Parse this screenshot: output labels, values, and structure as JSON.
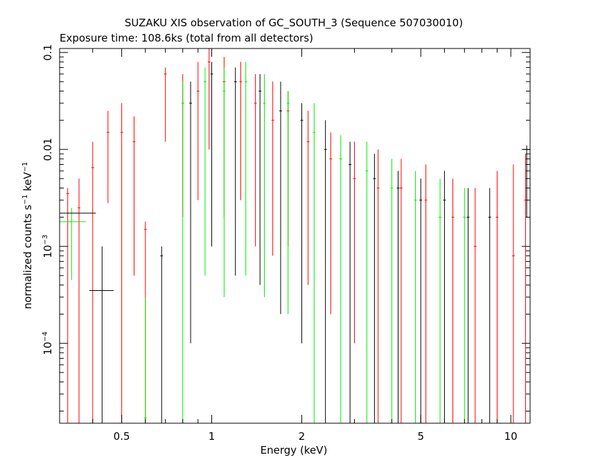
{
  "chart_data": {
    "type": "scatter",
    "title": "SUZAKU XIS observation of GC_SOUTH_3 (Sequence 507030010)",
    "subtitle": "Exposure time: 108.6ks (total from all detectors)",
    "xlabel": "Energy (keV)",
    "ylabel_main": "normalized counts s",
    "ylabel_sup1": "−1",
    "ylabel_mid": " keV",
    "ylabel_sup2": "−1",
    "x_scale": "log",
    "y_scale": "log",
    "xlim": [
      0.31,
      11.6
    ],
    "ylim": [
      1.5e-05,
      0.11
    ],
    "x_ticks": [
      {
        "value": 0.5,
        "label": "0.5"
      },
      {
        "value": 1,
        "label": "1"
      },
      {
        "value": 2,
        "label": "2"
      },
      {
        "value": 5,
        "label": "5"
      },
      {
        "value": 10,
        "label": "10"
      }
    ],
    "y_ticks": [
      {
        "value": 0.1,
        "label": "0.1",
        "exp": ""
      },
      {
        "value": 0.01,
        "label": "0.01",
        "exp": ""
      },
      {
        "value": 0.001,
        "label": "10",
        "exp": "−3"
      },
      {
        "value": 0.0001,
        "label": "10",
        "exp": "−4"
      }
    ],
    "grid": false,
    "legend": "none",
    "series": [
      {
        "color": "#ff0000",
        "points": [
          {
            "x": 0.33,
            "y": 0.0035,
            "lo": 1.5e-05,
            "hi": 0.004
          },
          {
            "x": 0.36,
            "y": 0.0025,
            "lo": 1.5e-05,
            "hi": 0.005
          },
          {
            "x": 0.4,
            "y": 0.0065,
            "lo": 1.5e-05,
            "hi": 0.012
          },
          {
            "x": 0.45,
            "y": 0.015,
            "lo": 0.0028,
            "hi": 0.025
          },
          {
            "x": 0.5,
            "y": 0.015,
            "lo": 1.5e-05,
            "hi": 0.03
          },
          {
            "x": 0.55,
            "y": 0.012,
            "lo": 0.0005,
            "hi": 0.022
          },
          {
            "x": 0.6,
            "y": 0.0015,
            "lo": 1.5e-05,
            "hi": 0.0018
          },
          {
            "x": 0.7,
            "y": 0.06,
            "lo": 0.012,
            "hi": 0.07
          },
          {
            "x": 0.8,
            "y": 0.03,
            "lo": 0.002,
            "hi": 0.06
          },
          {
            "x": 0.9,
            "y": 0.04,
            "lo": 0.003,
            "hi": 0.08
          },
          {
            "x": 0.98,
            "y": 0.08,
            "lo": 0.01,
            "hi": 0.11
          },
          {
            "x": 1.1,
            "y": 0.05,
            "lo": 0.002,
            "hi": 0.09
          },
          {
            "x": 1.25,
            "y": 0.05,
            "lo": 0.003,
            "hi": 0.08
          },
          {
            "x": 1.4,
            "y": 0.03,
            "lo": 0.001,
            "hi": 0.06
          },
          {
            "x": 1.6,
            "y": 0.02,
            "lo": 0.0008,
            "hi": 0.05
          },
          {
            "x": 1.8,
            "y": 0.025,
            "lo": 0.001,
            "hi": 0.04
          },
          {
            "x": 2.1,
            "y": 0.012,
            "lo": 0.0004,
            "hi": 0.025
          },
          {
            "x": 2.5,
            "y": 0.008,
            "lo": 0.0002,
            "hi": 0.015
          },
          {
            "x": 3.0,
            "y": 0.005,
            "lo": 0.0001,
            "hi": 0.012
          },
          {
            "x": 3.6,
            "y": 0.004,
            "lo": 1.5e-05,
            "hi": 0.01
          },
          {
            "x": 4.3,
            "y": 0.004,
            "lo": 1.5e-05,
            "hi": 0.008
          },
          {
            "x": 5.2,
            "y": 0.003,
            "lo": 1.5e-05,
            "hi": 0.007
          },
          {
            "x": 6.4,
            "y": 0.002,
            "lo": 1.5e-05,
            "hi": 0.005
          },
          {
            "x": 7.6,
            "y": 0.001,
            "lo": 1.5e-05,
            "hi": 0.004
          },
          {
            "x": 9.0,
            "y": 0.002,
            "lo": 1.5e-05,
            "hi": 0.006
          },
          {
            "x": 10.2,
            "y": 0.0008,
            "lo": 1.5e-05,
            "hi": 0.007
          },
          {
            "x": 11.2,
            "y": 0.003,
            "lo": 1.5e-05,
            "hi": 0.009
          }
        ]
      },
      {
        "color": "#00ee00",
        "points": [
          {
            "x": 0.34,
            "y": 0.0018,
            "lo": 0.00045,
            "hi": 0.0025,
            "xlo": 0.31,
            "xhi": 0.38
          },
          {
            "x": 0.6,
            "y": 1.7e-05,
            "lo": 1.5e-05,
            "hi": 0.0003
          },
          {
            "x": 0.8,
            "y": 0.03,
            "lo": 1.5e-05,
            "hi": 0.05
          },
          {
            "x": 0.95,
            "y": 0.05,
            "lo": 0.0005,
            "hi": 0.07
          },
          {
            "x": 1.1,
            "y": 0.04,
            "lo": 0.0003,
            "hi": 0.07
          },
          {
            "x": 1.3,
            "y": 0.05,
            "lo": 0.0005,
            "hi": 0.08
          },
          {
            "x": 1.5,
            "y": 0.03,
            "lo": 0.0003,
            "hi": 0.06
          },
          {
            "x": 1.8,
            "y": 0.03,
            "lo": 0.0002,
            "hi": 0.04
          },
          {
            "x": 2.2,
            "y": 0.015,
            "lo": 1.5e-05,
            "hi": 0.03
          },
          {
            "x": 2.7,
            "y": 0.008,
            "lo": 1.5e-05,
            "hi": 0.014
          },
          {
            "x": 3.3,
            "y": 0.006,
            "lo": 1.5e-05,
            "hi": 0.012
          },
          {
            "x": 4.0,
            "y": 0.004,
            "lo": 1.5e-05,
            "hi": 0.008
          },
          {
            "x": 4.8,
            "y": 0.003,
            "lo": 1.5e-05,
            "hi": 0.006
          },
          {
            "x": 5.8,
            "y": 0.002,
            "lo": 1.5e-05,
            "hi": 0.005
          },
          {
            "x": 7.0,
            "y": 0.002,
            "lo": 1.5e-05,
            "hi": 0.004
          }
        ]
      },
      {
        "color": "#000000",
        "points": [
          {
            "x": 0.34,
            "y": 0.0022,
            "lo": 0.0022,
            "hi": 0.0022,
            "xlo": 0.31,
            "xhi": 0.41
          },
          {
            "x": 0.43,
            "y": 0.00035,
            "lo": 1.5e-05,
            "hi": 0.001,
            "xlo": 0.39,
            "xhi": 0.47
          },
          {
            "x": 0.68,
            "y": 0.0008,
            "lo": 1.5e-05,
            "hi": 0.001
          },
          {
            "x": 0.85,
            "y": 0.03,
            "lo": 0.0001,
            "hi": 0.05
          },
          {
            "x": 1.0,
            "y": 0.06,
            "lo": 0.001,
            "hi": 0.08
          },
          {
            "x": 1.2,
            "y": 0.05,
            "lo": 0.0005,
            "hi": 0.07
          },
          {
            "x": 1.45,
            "y": 0.04,
            "lo": 0.0004,
            "hi": 0.06
          },
          {
            "x": 1.7,
            "y": 0.025,
            "lo": 0.0002,
            "hi": 0.05
          },
          {
            "x": 2.0,
            "y": 0.02,
            "lo": 0.0001,
            "hi": 0.03
          },
          {
            "x": 2.4,
            "y": 0.01,
            "lo": 1.5e-05,
            "hi": 0.02
          },
          {
            "x": 2.9,
            "y": 0.007,
            "lo": 1.5e-05,
            "hi": 0.012
          },
          {
            "x": 3.5,
            "y": 0.005,
            "lo": 1.5e-05,
            "hi": 0.009
          },
          {
            "x": 4.2,
            "y": 0.004,
            "lo": 1.5e-05,
            "hi": 0.006
          },
          {
            "x": 5.0,
            "y": 0.003,
            "lo": 1.5e-05,
            "hi": 0.005
          },
          {
            "x": 6.0,
            "y": 0.003,
            "lo": 1.5e-05,
            "hi": 0.006
          },
          {
            "x": 7.2,
            "y": 0.002,
            "lo": 1.5e-05,
            "hi": 0.004
          },
          {
            "x": 8.5,
            "y": 0.002,
            "lo": 1.5e-05,
            "hi": 0.004
          },
          {
            "x": 11.3,
            "y": 0.01,
            "lo": 0.002,
            "hi": 0.011,
            "xlo": 11.0,
            "xhi": 11.6
          }
        ]
      }
    ]
  }
}
